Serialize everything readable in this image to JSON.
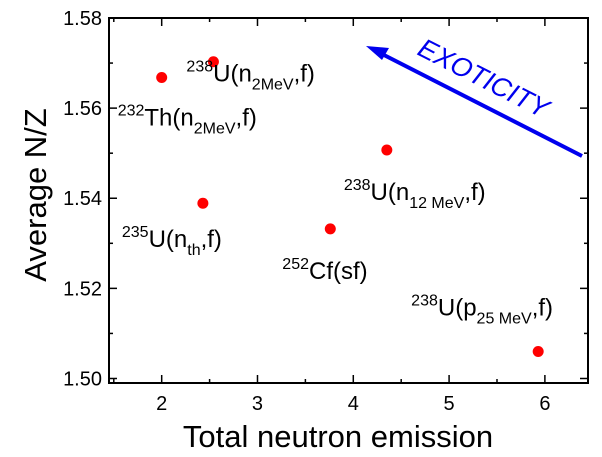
{
  "chart_data": {
    "type": "scatter",
    "xlabel": "Total neutron emission",
    "ylabel": "Average N/Z",
    "xlim": [
      1.45,
      6.45
    ],
    "ylim": [
      1.499,
      1.58
    ],
    "xticks": [
      "2",
      "3",
      "4",
      "5",
      "6"
    ],
    "yticks": [
      "1.50",
      "1.52",
      "1.54",
      "1.56",
      "1.58"
    ],
    "marker_color": "#ff0000",
    "points": [
      {
        "x": 2.0,
        "y": 1.5668,
        "label": {
          "sup": "232",
          "base": "Th(n",
          "sub": "2MeV",
          "tail": ",f)"
        }
      },
      {
        "x": 2.54,
        "y": 1.5703,
        "label": {
          "sup": "238",
          "base": "U(n",
          "sub": "2MeV",
          "tail": ",f)"
        }
      },
      {
        "x": 2.43,
        "y": 1.5389,
        "label": {
          "sup": "235",
          "base": "U(n",
          "sub": "th",
          "tail": ",f)"
        }
      },
      {
        "x": 3.76,
        "y": 1.5332,
        "label": {
          "sup": "252",
          "base": "Cf(sf)",
          "sub": "",
          "tail": ""
        }
      },
      {
        "x": 4.35,
        "y": 1.5507,
        "label": {
          "sup": "238",
          "base": "U(n",
          "sub": "12 MeV",
          "tail": ",f)"
        }
      },
      {
        "x": 5.93,
        "y": 1.506,
        "label": {
          "sup": "238",
          "base": "U(p",
          "sub": "25 MeV",
          "tail": ",f)"
        }
      }
    ],
    "annotation": {
      "text": "EXOTICITY",
      "color": "#0000ee"
    }
  }
}
